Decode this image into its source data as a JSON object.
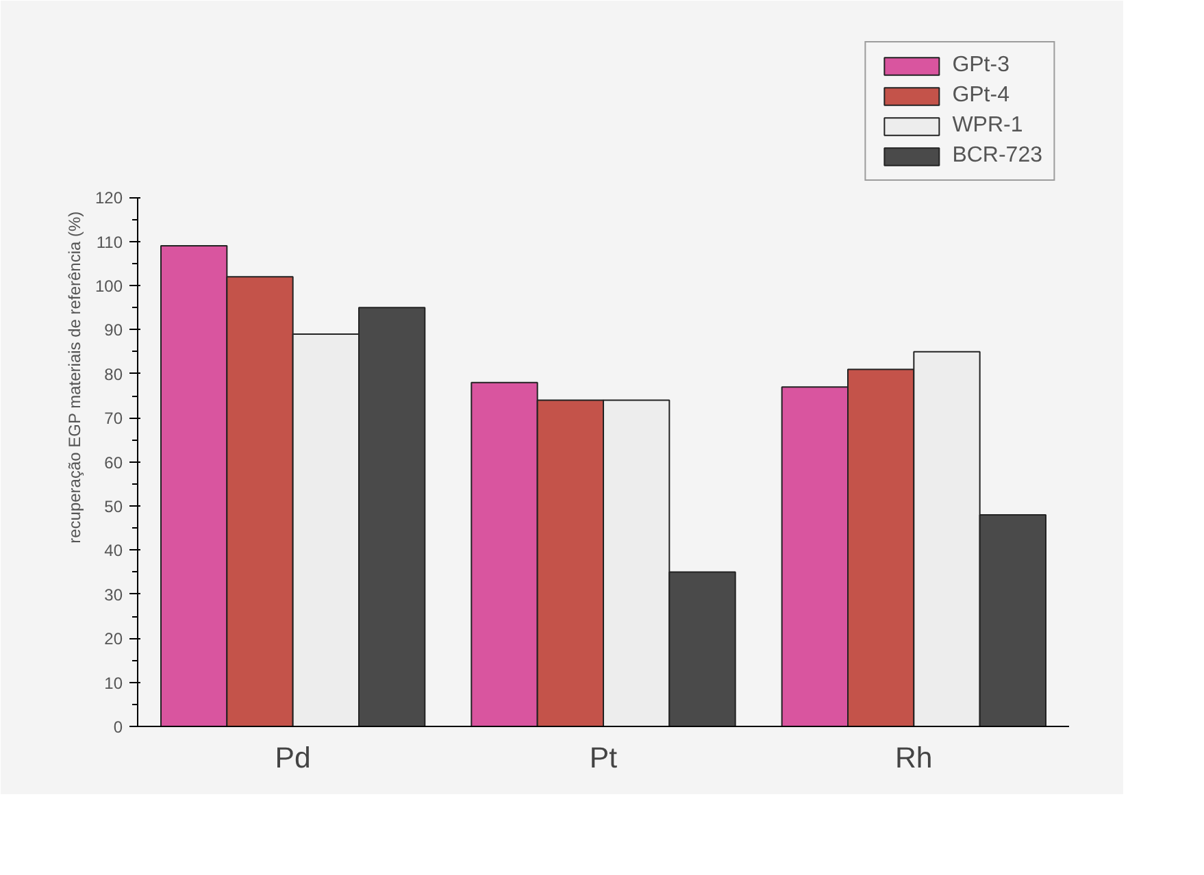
{
  "chart_data": {
    "type": "bar",
    "ylabel": "recuperação EGP materiais de referência (%)",
    "categories": [
      "Pd",
      "Pt",
      "Rh"
    ],
    "series": [
      {
        "name": "GPt-3",
        "color": "#d9559f",
        "values": [
          109,
          78,
          77
        ]
      },
      {
        "name": "GPt-4",
        "color": "#c4534a",
        "values": [
          102,
          74,
          81
        ]
      },
      {
        "name": "WPR-1",
        "color": "#ededed",
        "values": [
          89,
          74,
          85
        ]
      },
      {
        "name": "BCR-723",
        "color": "#4a4a4a",
        "values": [
          95,
          35,
          48
        ]
      }
    ],
    "ylim": [
      0,
      120
    ],
    "yticks": [
      0,
      10,
      20,
      30,
      40,
      50,
      60,
      70,
      80,
      90,
      100,
      110,
      120
    ],
    "grid": false,
    "legend": "top right"
  }
}
